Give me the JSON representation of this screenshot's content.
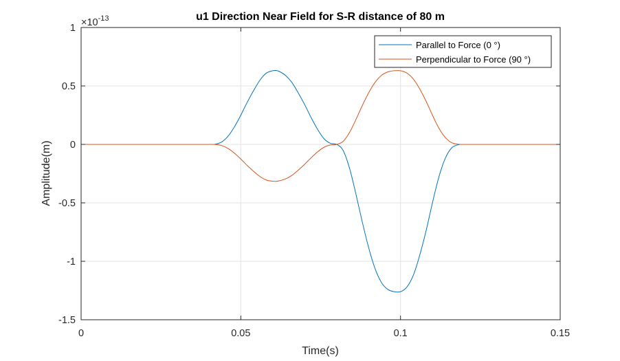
{
  "chart_data": {
    "type": "line",
    "title": "u1 Direction Near Field for S-R distance of 80 m",
    "xlabel": "Time(s)",
    "ylabel": "Amplitude(m)",
    "y_exponent_label": "×10",
    "y_exponent_power": "-13",
    "y_scale": 1e-13,
    "xlim": [
      0,
      0.15
    ],
    "ylim": [
      -1.5,
      1
    ],
    "x_ticks": [
      0,
      0.05,
      0.1,
      0.15
    ],
    "x_tick_labels": [
      "0",
      "0.05",
      "0.1",
      "0.15"
    ],
    "y_ticks": [
      1,
      0.5,
      0,
      -0.5,
      -1,
      -1.5
    ],
    "y_tick_labels": [
      "1",
      "0.5",
      "0",
      "-0.5",
      "-1",
      "-1.5"
    ],
    "grid": true,
    "legend_position": "top-right",
    "series": [
      {
        "name": "Parallel to Force (0 °)",
        "color": "#0072BD",
        "x": [
          0,
          0.02,
          0.04,
          0.042,
          0.044,
          0.046,
          0.048,
          0.05,
          0.052,
          0.054,
          0.056,
          0.058,
          0.06,
          0.061,
          0.062,
          0.064,
          0.066,
          0.068,
          0.07,
          0.072,
          0.074,
          0.076,
          0.078,
          0.08,
          0.082,
          0.084,
          0.086,
          0.088,
          0.09,
          0.092,
          0.094,
          0.096,
          0.098,
          0.1,
          0.102,
          0.104,
          0.106,
          0.108,
          0.11,
          0.112,
          0.114,
          0.116,
          0.118,
          0.12,
          0.13,
          0.14,
          0.15
        ],
        "y": [
          0,
          0,
          0,
          0.002,
          0.02,
          0.07,
          0.15,
          0.25,
          0.36,
          0.46,
          0.55,
          0.61,
          0.63,
          0.632,
          0.625,
          0.59,
          0.53,
          0.44,
          0.34,
          0.23,
          0.13,
          0.05,
          0.01,
          0,
          -0.05,
          -0.2,
          -0.42,
          -0.66,
          -0.88,
          -1.06,
          -1.18,
          -1.24,
          -1.26,
          -1.26,
          -1.22,
          -1.12,
          -0.95,
          -0.74,
          -0.5,
          -0.28,
          -0.12,
          -0.03,
          -0.004,
          0,
          0,
          0,
          0
        ]
      },
      {
        "name": "Perpendicular to Force (90 °)",
        "color": "#D95319",
        "x": [
          0,
          0.02,
          0.04,
          0.042,
          0.044,
          0.046,
          0.048,
          0.05,
          0.052,
          0.054,
          0.056,
          0.058,
          0.06,
          0.061,
          0.062,
          0.064,
          0.066,
          0.068,
          0.07,
          0.072,
          0.074,
          0.076,
          0.078,
          0.08,
          0.082,
          0.084,
          0.086,
          0.088,
          0.09,
          0.092,
          0.094,
          0.096,
          0.098,
          0.1,
          0.102,
          0.104,
          0.106,
          0.108,
          0.11,
          0.112,
          0.114,
          0.116,
          0.118,
          0.12,
          0.13,
          0.14,
          0.15
        ],
        "y": [
          0,
          0,
          0,
          -0.001,
          -0.01,
          -0.035,
          -0.075,
          -0.125,
          -0.18,
          -0.23,
          -0.275,
          -0.305,
          -0.315,
          -0.316,
          -0.312,
          -0.295,
          -0.265,
          -0.22,
          -0.17,
          -0.115,
          -0.065,
          -0.025,
          -0.005,
          0,
          0.025,
          0.1,
          0.21,
          0.33,
          0.44,
          0.53,
          0.59,
          0.62,
          0.63,
          0.63,
          0.61,
          0.56,
          0.475,
          0.37,
          0.25,
          0.14,
          0.06,
          0.015,
          0.002,
          0,
          0,
          0,
          0
        ]
      }
    ]
  }
}
